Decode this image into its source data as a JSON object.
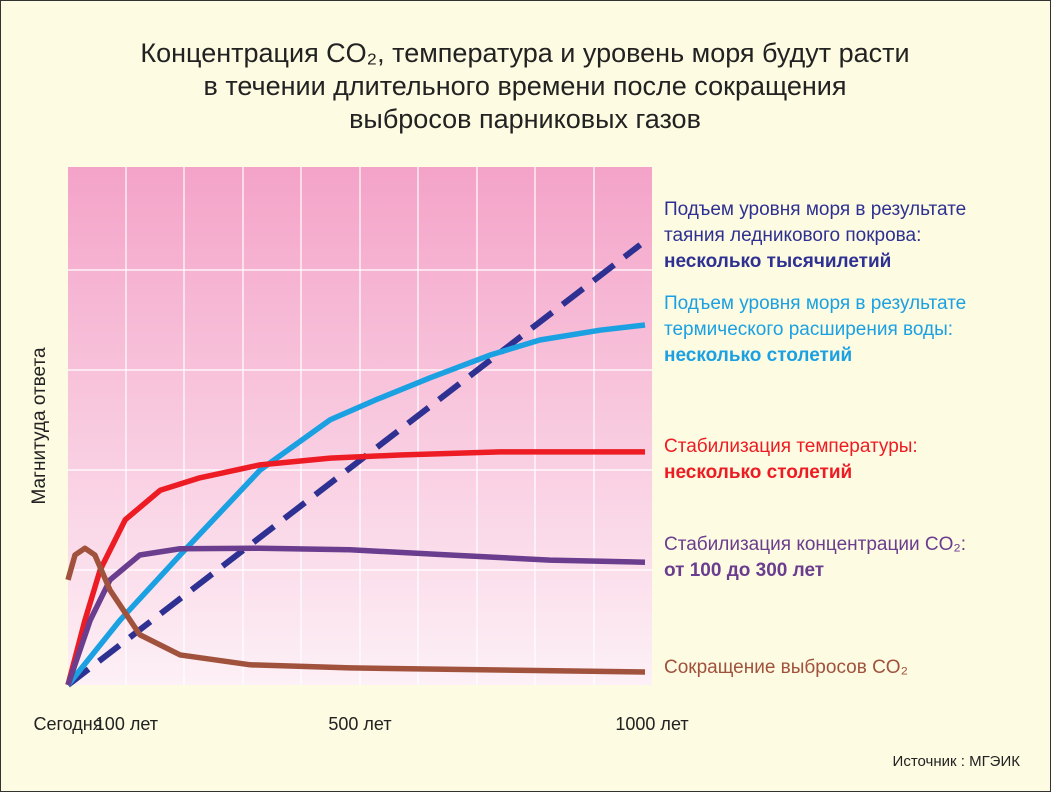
{
  "chart_data": {
    "type": "line",
    "title": [
      "Концентрация CO₂, температура и уровень моря будут расти",
      "в течении длительного времени после сокращения",
      "выбросов парниковых газов"
    ],
    "y_label": "Магнитуда ответа",
    "source": "Источник : МГЭИК",
    "xlim": [
      0,
      1000
    ],
    "ylim": [
      0,
      100
    ],
    "xticks": [
      {
        "value": 0,
        "label": "Сегодня"
      },
      {
        "value": 100,
        "label": "100 лет"
      },
      {
        "value": 500,
        "label": "500 лет"
      },
      {
        "value": 1000,
        "label": "1000 лет"
      }
    ],
    "grid": true,
    "series": [
      {
        "label_lines": [
          "Подъем уровня моря в результате",
          "таяния ледникового покрова:"
        ],
        "duration": "несколько тысячилетий",
        "color": "#2e3192",
        "dashed": true,
        "x": [
          0,
          980
        ],
        "values": [
          0,
          85
        ]
      },
      {
        "label_lines": [
          "Подъем уровня моря в результате",
          "термического расширения воды:"
        ],
        "duration": "несколько столетий",
        "color": "#1ba1e2",
        "dashed": false,
        "x": [
          0,
          89,
          192,
          329,
          449,
          526,
          620,
          723,
          808,
          911,
          988
        ],
        "values": [
          0,
          12.5,
          25.1,
          41.5,
          51.2,
          55,
          59.3,
          63.7,
          66.6,
          68.5,
          69.5
        ]
      },
      {
        "label_lines": [
          "Стабилизация температуры:"
        ],
        "duration": "несколько столетий",
        "color": "#ed1c24",
        "dashed": false,
        "x": [
          0,
          29,
          55,
          98,
          158,
          226,
          329,
          449,
          568,
          740,
          988
        ],
        "values": [
          0,
          12.5,
          22.2,
          31.9,
          37.6,
          40,
          42.5,
          43.8,
          44.4,
          45,
          45
        ]
      },
      {
        "label_lines": [
          "Стабилизация концентрации CO₂:"
        ],
        "duration": "от 100 до 300 лет",
        "color": "#6a3d8f",
        "dashed": false,
        "x": [
          0,
          38,
          72,
          123,
          192,
          329,
          483,
          654,
          825,
          988
        ],
        "values": [
          0,
          12.5,
          20.3,
          25.1,
          26.3,
          26.4,
          26.1,
          25.1,
          24.1,
          23.7
        ]
      },
      {
        "label_lines": [
          "Сокращение выбросов CO₂"
        ],
        "color": "#a0523d",
        "dashed": false,
        "x": [
          0,
          12,
          29,
          46,
          72,
          123,
          192,
          312,
          483,
          740,
          988
        ],
        "values": [
          20.3,
          25.1,
          26.4,
          25.1,
          18.3,
          9.7,
          5.8,
          3.9,
          3.3,
          2.9,
          2.5
        ]
      }
    ]
  }
}
